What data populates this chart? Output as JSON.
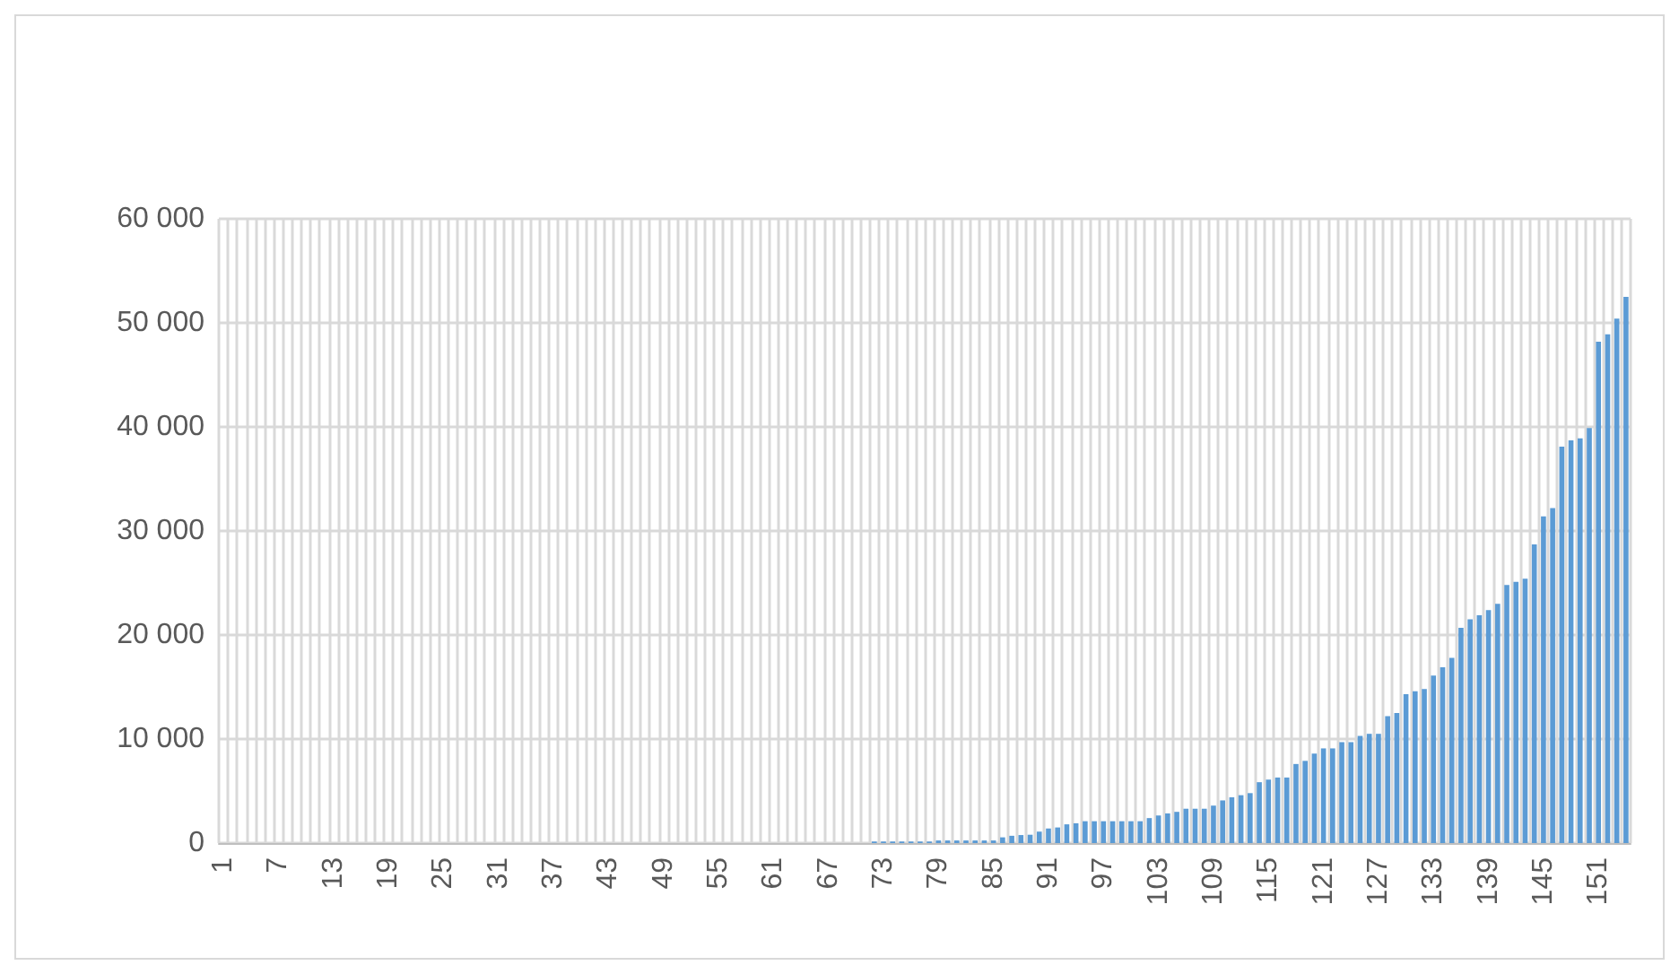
{
  "chart_data": {
    "type": "bar",
    "color": "#5b9bd5",
    "grid": true,
    "categories": [
      "1",
      null,
      null,
      null,
      null,
      null,
      "7",
      null,
      null,
      null,
      null,
      null,
      "13",
      null,
      null,
      null,
      null,
      null,
      "19",
      null,
      null,
      null,
      null,
      null,
      "25",
      null,
      null,
      null,
      null,
      null,
      "31",
      null,
      null,
      null,
      null,
      null,
      "37",
      null,
      null,
      null,
      null,
      null,
      "43",
      null,
      null,
      null,
      null,
      null,
      "49",
      null,
      null,
      null,
      null,
      null,
      "55",
      null,
      null,
      null,
      null,
      null,
      "61",
      null,
      null,
      null,
      null,
      null,
      "67",
      null,
      null,
      null,
      null,
      null,
      "73",
      null,
      null,
      null,
      null,
      null,
      "79",
      null,
      null,
      null,
      null,
      null,
      "85",
      null,
      null,
      null,
      null,
      null,
      "91",
      null,
      null,
      null,
      null,
      null,
      "97",
      null,
      null,
      null,
      null,
      null,
      "103",
      null,
      null,
      null,
      null,
      null,
      "109",
      null,
      null,
      null,
      null,
      null,
      "115",
      null,
      null,
      null,
      null,
      null,
      "121",
      null,
      null,
      null,
      null,
      null,
      "127",
      null,
      null,
      null,
      null,
      null,
      "133",
      null,
      null,
      null,
      null,
      null,
      "139",
      null,
      null,
      null,
      null,
      null,
      "145",
      null,
      null,
      null,
      null,
      null,
      "151",
      null,
      null,
      null
    ],
    "values": [
      0,
      0,
      0,
      0,
      0,
      0,
      0,
      0,
      0,
      0,
      0,
      0,
      0,
      0,
      0,
      0,
      0,
      0,
      0,
      0,
      0,
      0,
      0,
      0,
      0,
      0,
      0,
      0,
      0,
      0,
      0,
      0,
      0,
      0,
      0,
      0,
      0,
      0,
      0,
      0,
      0,
      0,
      0,
      0,
      0,
      0,
      0,
      0,
      0,
      0,
      0,
      0,
      0,
      0,
      0,
      0,
      0,
      0,
      0,
      0,
      0,
      0,
      0,
      0,
      0,
      0,
      0,
      0,
      0,
      0,
      0,
      150,
      150,
      150,
      150,
      150,
      150,
      150,
      250,
      250,
      250,
      250,
      250,
      250,
      250,
      550,
      700,
      770,
      800,
      1100,
      1400,
      1500,
      1800,
      1900,
      2100,
      2100,
      2100,
      2100,
      2100,
      2100,
      2100,
      2400,
      2650,
      2850,
      3000,
      3300,
      3300,
      3300,
      3600,
      4100,
      4400,
      4600,
      4800,
      5850,
      6100,
      6300,
      6300,
      7600,
      7900,
      8600,
      9100,
      9100,
      9700,
      9700,
      10300,
      10500,
      10500,
      12200,
      12500,
      14300,
      14600,
      14800,
      16100,
      16900,
      17800,
      20700,
      21500,
      21900,
      22400,
      23000,
      24800,
      25100,
      25400,
      28700,
      31400,
      32200,
      38100,
      38700,
      38900,
      39900,
      48200,
      48900,
      50400,
      52500
    ],
    "ylim": [
      0,
      60000
    ],
    "yticks": [
      0,
      {
        "value": 10000,
        "label": "10 000"
      },
      {
        "value": 20000,
        "label": "20 000"
      },
      {
        "value": 30000,
        "label": "30 000"
      },
      {
        "value": 40000,
        "label": "40 000"
      },
      {
        "value": 50000,
        "label": "50 000"
      },
      {
        "value": 60000,
        "label": "60 000"
      }
    ]
  }
}
